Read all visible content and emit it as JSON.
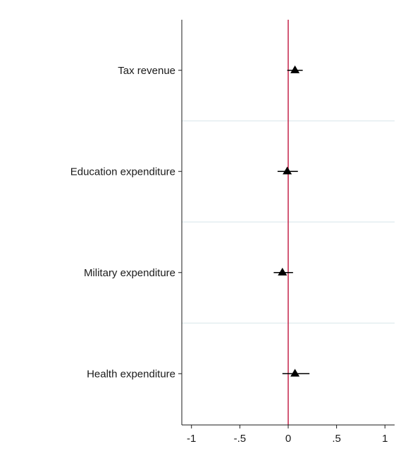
{
  "chart_data": {
    "type": "scatter",
    "subtype": "coefficient-plot",
    "orientation": "horizontal",
    "title": "",
    "xlabel": "",
    "ylabel": "",
    "xlim": [
      -1.1,
      1.1
    ],
    "x_ticks": [
      -1,
      -0.5,
      0,
      0.5,
      1
    ],
    "x_tick_labels": [
      "-1",
      "-.5",
      "0",
      ".5",
      "1"
    ],
    "categories": [
      "Tax revenue",
      "Education expenditure",
      "Military expenditure",
      "Health expenditure"
    ],
    "series": [
      {
        "marker": "triangle",
        "color": "#000000",
        "points": [
          {
            "label": "Tax revenue",
            "estimate": 0.07,
            "ci_low": -0.01,
            "ci_high": 0.15
          },
          {
            "label": "Education expenditure",
            "estimate": -0.01,
            "ci_low": -0.11,
            "ci_high": 0.1
          },
          {
            "label": "Military expenditure",
            "estimate": -0.06,
            "ci_low": -0.15,
            "ci_high": 0.05
          },
          {
            "label": "Health expenditure",
            "estimate": 0.07,
            "ci_low": -0.06,
            "ci_high": 0.22
          }
        ]
      }
    ],
    "reference_line": {
      "x": 0,
      "color": "#c0143c"
    },
    "separator_color": "#e3eef0",
    "axis_color": "#1a1a1a",
    "grid": false,
    "legend": "none"
  }
}
